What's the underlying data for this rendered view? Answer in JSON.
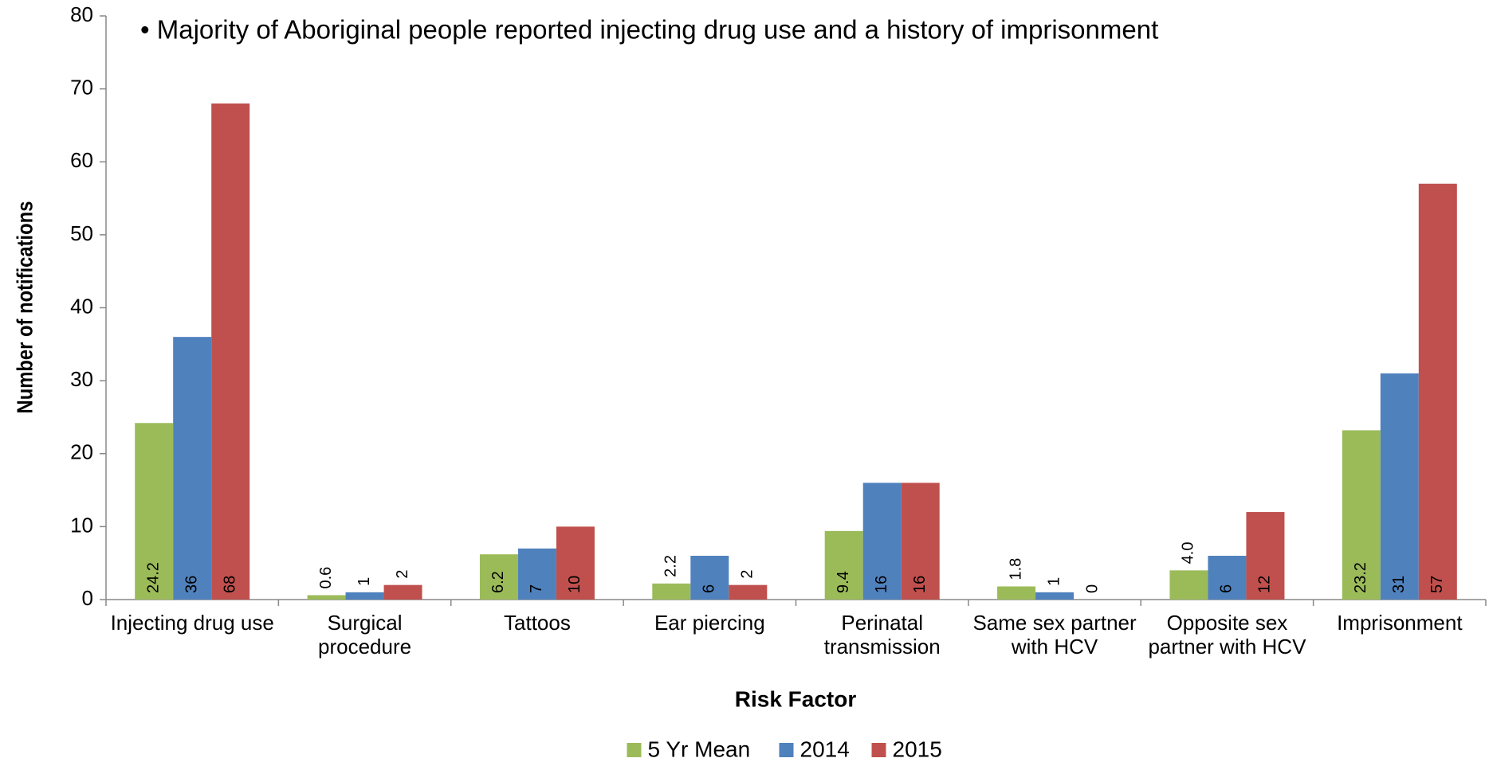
{
  "chart_data": {
    "type": "bar",
    "annotation": "• Majority of Aboriginal people reported injecting drug use and a history of imprisonment",
    "x_label": "Risk Factor",
    "y_label": "Number of notifications",
    "categories": [
      "Injecting drug use",
      "Surgical procedure",
      "Tattoos",
      "Ear piercing",
      "Perinatal transmission",
      "Same sex partner with HCV",
      "Opposite sex partner with HCV",
      "Imprisonment"
    ],
    "series": [
      {
        "name": "5 Yr Mean",
        "color": "#9bbb59",
        "values": [
          24.2,
          0.6,
          6.2,
          2.2,
          9.4,
          1.8,
          4,
          23.2
        ],
        "value_labels": [
          "24.2",
          "0.6",
          "6.2",
          "2.2",
          "9.4",
          "1.8",
          "4.0",
          "23.2"
        ]
      },
      {
        "name": "2014",
        "color": "#4f81bd",
        "values": [
          36,
          1,
          7,
          6,
          16,
          1,
          6,
          31
        ]
      },
      {
        "name": "2015",
        "color": "#c0504d",
        "values": [
          68,
          2,
          10,
          2,
          16,
          0,
          12,
          57
        ]
      }
    ],
    "ylim": [
      0,
      80
    ],
    "yticks": [
      0,
      10,
      20,
      30,
      40,
      50,
      60,
      70,
      80
    ],
    "grid": false,
    "legend": "bottom"
  }
}
